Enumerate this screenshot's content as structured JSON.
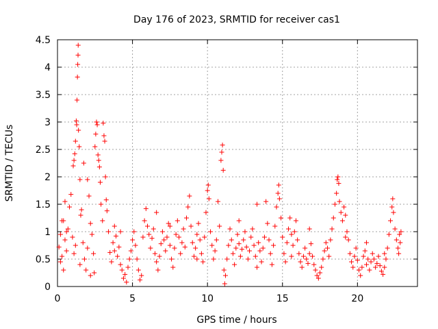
{
  "chart_data": {
    "type": "scatter",
    "title": "Day 176 of 2023, SRMTID for receiver cas1",
    "xlabel": "GPS time / hours",
    "ylabel": "SRMTID / TECUs",
    "xlim": [
      0,
      24
    ],
    "ylim": [
      0,
      4.5
    ],
    "x_ticks": [
      0,
      5,
      10,
      15,
      20
    ],
    "x_tick_labels": [
      "0",
      "5",
      "10",
      "15",
      "20"
    ],
    "y_ticks": [
      0,
      0.5,
      1,
      1.5,
      2,
      2.5,
      3,
      3.5,
      4,
      4.5
    ],
    "y_tick_labels": [
      "0",
      "0.5",
      "1",
      "1.5",
      "2",
      "2.5",
      "3",
      "3.5",
      "4",
      "4.5"
    ],
    "grid": true,
    "marker": "plus",
    "color": "#ff0000",
    "x_range_data": [
      0,
      22.9
    ],
    "series": [
      {
        "name": "cas1",
        "points": [
          [
            0.1,
            0.72
          ],
          [
            0.2,
            0.95
          ],
          [
            0.3,
            0.55
          ],
          [
            0.4,
            1.2
          ],
          [
            0.5,
            0.85
          ],
          [
            0.6,
            0.65
          ],
          [
            0.7,
            1.05
          ],
          [
            0.8,
            1.45
          ],
          [
            0.9,
            1.68
          ],
          [
            1.0,
            0.9
          ],
          [
            0.5,
            1.55
          ],
          [
            0.4,
            0.3
          ],
          [
            0.2,
            0.45
          ],
          [
            1.1,
            0.6
          ],
          [
            1.2,
            0.75
          ],
          [
            1.05,
            2.2
          ],
          [
            1.1,
            2.3
          ],
          [
            1.15,
            2.42
          ],
          [
            1.2,
            2.65
          ],
          [
            1.25,
            3.02
          ],
          [
            1.28,
            2.95
          ],
          [
            1.3,
            3.4
          ],
          [
            1.33,
            3.82
          ],
          [
            1.35,
            4.05
          ],
          [
            1.37,
            4.22
          ],
          [
            1.38,
            4.4
          ],
          [
            1.4,
            2.85
          ],
          [
            1.45,
            2.55
          ],
          [
            1.5,
            1.95
          ],
          [
            1.55,
            1.3
          ],
          [
            1.6,
            1.4
          ],
          [
            1.7,
            0.8
          ],
          [
            1.8,
            0.5
          ],
          [
            1.9,
            0.3
          ],
          [
            2.0,
            0.7
          ],
          [
            1.75,
            2.25
          ],
          [
            2.0,
            1.95
          ],
          [
            2.1,
            1.65
          ],
          [
            2.2,
            1.15
          ],
          [
            2.3,
            0.95
          ],
          [
            2.4,
            0.6
          ],
          [
            2.45,
            0.25
          ],
          [
            2.5,
            2.55
          ],
          [
            2.55,
            2.78
          ],
          [
            2.6,
            3.0
          ],
          [
            2.65,
            2.95
          ],
          [
            2.7,
            2.4
          ],
          [
            2.75,
            2.3
          ],
          [
            2.8,
            2.18
          ],
          [
            2.85,
            1.9
          ],
          [
            2.9,
            1.5
          ],
          [
            3.0,
            1.2
          ],
          [
            3.05,
            2.98
          ],
          [
            3.1,
            2.75
          ],
          [
            3.15,
            2.65
          ],
          [
            3.2,
            2.0
          ],
          [
            3.25,
            1.58
          ],
          [
            3.3,
            1.38
          ],
          [
            3.4,
            1.0
          ],
          [
            3.5,
            0.62
          ],
          [
            3.6,
            0.45
          ],
          [
            3.7,
            0.8
          ],
          [
            3.8,
            1.1
          ],
          [
            3.9,
            0.92
          ],
          [
            4.0,
            0.55
          ],
          [
            4.1,
            0.72
          ],
          [
            4.2,
            0.4
          ],
          [
            4.3,
            0.3
          ],
          [
            4.4,
            0.15
          ],
          [
            4.5,
            0.22
          ],
          [
            4.6,
            0.08
          ],
          [
            4.7,
            0.35
          ],
          [
            4.8,
            0.5
          ],
          [
            4.9,
            0.65
          ],
          [
            5.0,
            0.85
          ],
          [
            5.1,
            1.0
          ],
          [
            5.2,
            0.75
          ],
          [
            5.3,
            0.5
          ],
          [
            5.4,
            0.3
          ],
          [
            5.5,
            0.12
          ],
          [
            5.6,
            0.2
          ],
          [
            5.7,
            0.9
          ],
          [
            5.8,
            1.2
          ],
          [
            5.9,
            1.42
          ],
          [
            6.0,
            1.1
          ],
          [
            6.1,
            0.95
          ],
          [
            6.2,
            0.7
          ],
          [
            6.3,
            0.88
          ],
          [
            6.4,
            1.05
          ],
          [
            6.5,
            0.6
          ],
          [
            6.6,
            0.45
          ],
          [
            6.7,
            0.3
          ],
          [
            6.8,
            0.55
          ],
          [
            6.9,
            0.78
          ],
          [
            7.0,
            1.0
          ],
          [
            7.1,
            0.85
          ],
          [
            7.2,
            0.65
          ],
          [
            7.3,
            0.9
          ],
          [
            7.4,
            1.15
          ],
          [
            7.5,
            0.75
          ],
          [
            7.6,
            0.5
          ],
          [
            7.7,
            0.35
          ],
          [
            7.8,
            0.7
          ],
          [
            7.9,
            0.95
          ],
          [
            8.0,
            1.2
          ],
          [
            8.1,
            0.9
          ],
          [
            8.2,
            0.6
          ],
          [
            8.3,
            0.8
          ],
          [
            8.4,
            1.05
          ],
          [
            8.5,
            0.72
          ],
          [
            8.6,
            1.25
          ],
          [
            8.7,
            1.45
          ],
          [
            8.8,
            1.65
          ],
          [
            8.9,
            1.1
          ],
          [
            9.0,
            0.8
          ],
          [
            9.1,
            0.55
          ],
          [
            9.2,
            0.7
          ],
          [
            9.3,
            0.95
          ],
          [
            9.4,
            1.15
          ],
          [
            9.5,
            0.85
          ],
          [
            9.6,
            0.6
          ],
          [
            9.7,
            0.45
          ],
          [
            9.8,
            0.9
          ],
          [
            9.9,
            1.35
          ],
          [
            10.0,
            1.75
          ],
          [
            10.05,
            1.85
          ],
          [
            10.1,
            1.6
          ],
          [
            10.2,
            1.0
          ],
          [
            10.3,
            0.75
          ],
          [
            10.4,
            0.5
          ],
          [
            10.5,
            0.65
          ],
          [
            10.6,
            0.85
          ],
          [
            10.7,
            1.55
          ],
          [
            10.8,
            1.1
          ],
          [
            10.9,
            2.3
          ],
          [
            10.95,
            2.45
          ],
          [
            11.0,
            2.58
          ],
          [
            11.05,
            2.12
          ],
          [
            11.1,
            0.3
          ],
          [
            11.15,
            0.05
          ],
          [
            11.2,
            0.2
          ],
          [
            11.3,
            0.5
          ],
          [
            11.4,
            0.75
          ],
          [
            11.5,
            1.05
          ],
          [
            11.6,
            0.85
          ],
          [
            11.7,
            0.6
          ],
          [
            11.8,
            0.4
          ],
          [
            11.9,
            0.7
          ],
          [
            12.0,
            0.95
          ],
          [
            12.1,
            0.78
          ],
          [
            12.2,
            0.55
          ],
          [
            12.3,
            0.68
          ],
          [
            12.4,
            0.85
          ],
          [
            12.5,
            1.0
          ],
          [
            12.6,
            0.72
          ],
          [
            12.7,
            0.5
          ],
          [
            12.8,
            0.65
          ],
          [
            12.9,
            0.9
          ],
          [
            13.0,
            1.05
          ],
          [
            13.1,
            0.75
          ],
          [
            13.2,
            0.55
          ],
          [
            13.3,
            1.5
          ],
          [
            13.4,
            0.8
          ],
          [
            13.5,
            0.65
          ],
          [
            13.6,
            0.45
          ],
          [
            13.7,
            0.7
          ],
          [
            13.8,
            0.9
          ],
          [
            13.9,
            1.55
          ],
          [
            14.0,
            1.15
          ],
          [
            14.1,
            0.85
          ],
          [
            14.2,
            0.6
          ],
          [
            14.3,
            0.4
          ],
          [
            14.4,
            0.75
          ],
          [
            14.5,
            1.1
          ],
          [
            14.6,
            1.45
          ],
          [
            14.7,
            1.7
          ],
          [
            14.75,
            1.85
          ],
          [
            14.8,
            1.6
          ],
          [
            14.9,
            1.25
          ],
          [
            15.0,
            0.9
          ],
          [
            15.1,
            0.6
          ],
          [
            15.2,
            0.45
          ],
          [
            15.3,
            0.8
          ],
          [
            15.4,
            1.05
          ],
          [
            15.5,
            1.25
          ],
          [
            15.6,
            0.95
          ],
          [
            15.7,
            0.75
          ],
          [
            15.8,
            1.0
          ],
          [
            15.9,
            1.2
          ],
          [
            16.0,
            0.85
          ],
          [
            16.1,
            0.6
          ],
          [
            16.2,
            0.45
          ],
          [
            16.3,
            0.35
          ],
          [
            16.4,
            0.55
          ],
          [
            16.5,
            0.7
          ],
          [
            16.6,
            0.5
          ],
          [
            16.7,
            0.42
          ],
          [
            16.8,
            0.6
          ],
          [
            16.9,
            0.78
          ],
          [
            17.0,
            0.55
          ],
          [
            17.1,
            0.4
          ],
          [
            17.2,
            0.3
          ],
          [
            17.3,
            0.2
          ],
          [
            17.4,
            0.15
          ],
          [
            17.5,
            0.25
          ],
          [
            17.6,
            0.35
          ],
          [
            17.7,
            0.5
          ],
          [
            17.8,
            0.65
          ],
          [
            17.9,
            0.8
          ],
          [
            18.0,
            0.7
          ],
          [
            18.1,
            0.55
          ],
          [
            18.2,
            0.85
          ],
          [
            18.3,
            1.05
          ],
          [
            18.4,
            1.25
          ],
          [
            18.5,
            1.5
          ],
          [
            18.6,
            1.7
          ],
          [
            18.65,
            1.95
          ],
          [
            18.7,
            2.0
          ],
          [
            18.75,
            1.88
          ],
          [
            18.8,
            1.55
          ],
          [
            18.9,
            1.35
          ],
          [
            19.0,
            1.2
          ],
          [
            19.1,
            1.45
          ],
          [
            19.2,
            1.3
          ],
          [
            19.3,
            1.0
          ],
          [
            19.4,
            0.85
          ],
          [
            19.5,
            0.6
          ],
          [
            19.6,
            0.45
          ],
          [
            19.7,
            0.35
          ],
          [
            19.8,
            0.55
          ],
          [
            19.9,
            0.7
          ],
          [
            20.0,
            0.48
          ],
          [
            20.1,
            0.3
          ],
          [
            20.2,
            0.2
          ],
          [
            20.3,
            0.35
          ],
          [
            20.4,
            0.55
          ],
          [
            20.5,
            0.65
          ],
          [
            20.6,
            0.4
          ],
          [
            20.7,
            0.5
          ],
          [
            20.8,
            0.3
          ],
          [
            20.9,
            0.45
          ],
          [
            21.0,
            0.6
          ],
          [
            21.1,
            0.5
          ],
          [
            21.2,
            0.35
          ],
          [
            21.3,
            0.42
          ],
          [
            21.4,
            0.55
          ],
          [
            21.5,
            0.38
          ],
          [
            21.6,
            0.28
          ],
          [
            21.7,
            0.22
          ],
          [
            21.8,
            0.35
          ],
          [
            21.9,
            0.5
          ],
          [
            22.0,
            0.7
          ],
          [
            22.1,
            0.95
          ],
          [
            22.2,
            1.2
          ],
          [
            22.3,
            1.45
          ],
          [
            22.35,
            1.6
          ],
          [
            22.4,
            1.35
          ],
          [
            22.5,
            1.05
          ],
          [
            22.6,
            0.85
          ],
          [
            22.7,
            0.7
          ],
          [
            22.8,
            0.95
          ],
          [
            22.9,
            1.0
          ],
          [
            22.85,
            0.8
          ],
          [
            22.75,
            0.6
          ],
          [
            0.3,
            1.2
          ],
          [
            0.6,
            1.0
          ],
          [
            1.5,
            0.4
          ],
          [
            2.2,
            0.2
          ],
          [
            3.8,
            0.65
          ],
          [
            4.2,
            1.0
          ],
          [
            6.6,
            1.35
          ],
          [
            7.5,
            1.1
          ],
          [
            9.3,
            0.5
          ],
          [
            12.1,
            1.2
          ],
          [
            13.3,
            0.35
          ],
          [
            15.6,
            0.55
          ],
          [
            16.8,
            1.05
          ],
          [
            19.2,
            0.9
          ],
          [
            20.6,
            0.8
          ],
          [
            21.8,
            0.6
          ]
        ]
      }
    ]
  }
}
